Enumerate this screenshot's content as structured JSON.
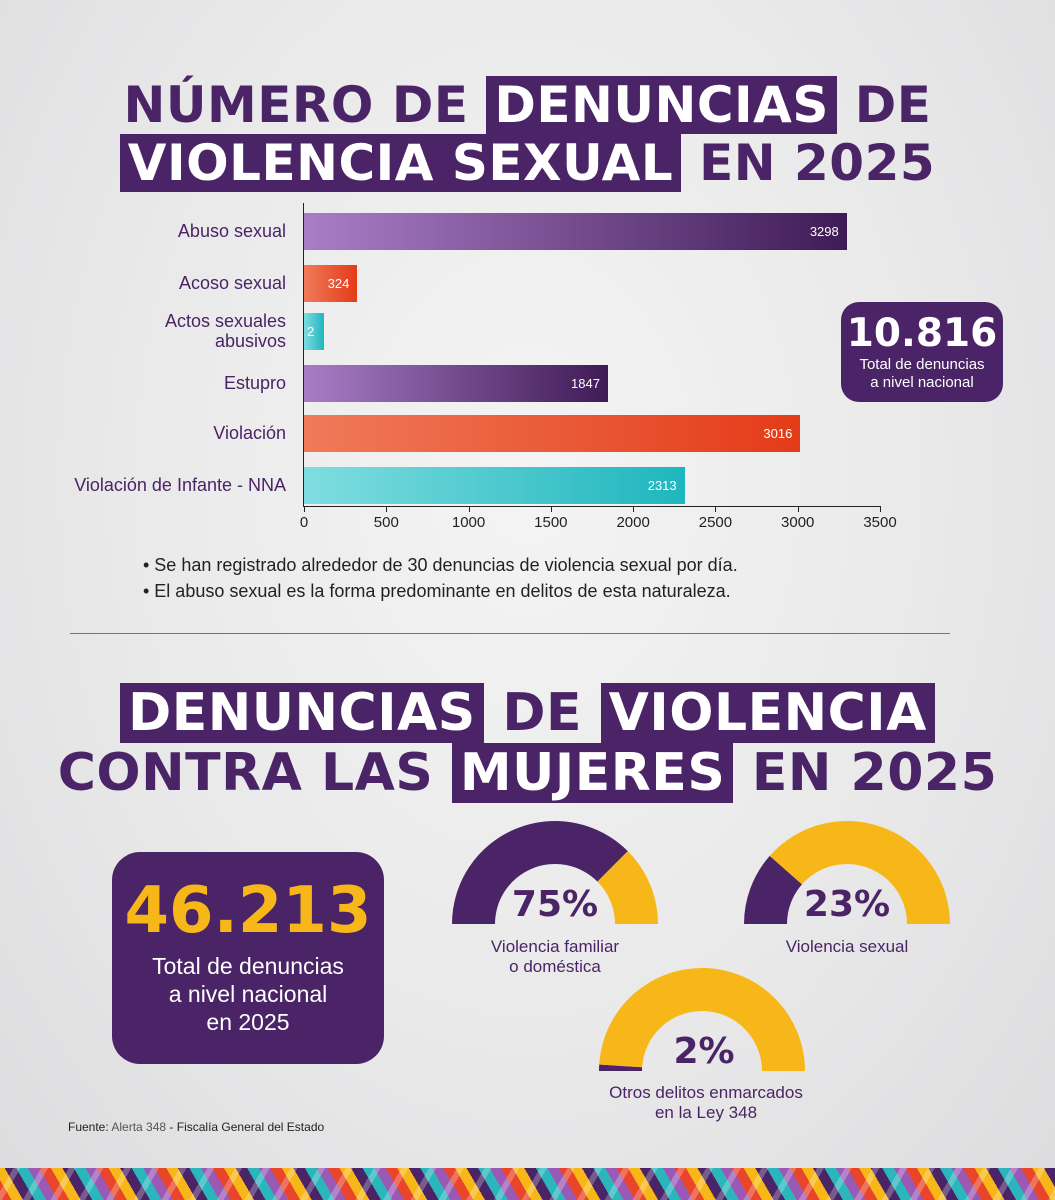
{
  "section1": {
    "title_line1": {
      "a": "NÚMERO DE ",
      "b": "DENUNCIAS",
      "c": " DE"
    },
    "title_line2": {
      "a": "VIOLENCIA SEXUAL",
      "b": " EN 2025"
    },
    "bullets": [
      "• Se han registrado alrededor de 30 denuncias de violencia sexual por día.",
      "• El abuso sexual es la forma predominante en delitos de esta naturaleza."
    ],
    "total": {
      "number": "10.816",
      "caption_line1": "Total de denuncias",
      "caption_line2": "a nivel nacional"
    }
  },
  "chart_data": [
    {
      "type": "bar",
      "orientation": "horizontal",
      "categories": [
        "Abuso sexual",
        "Acoso sexual",
        "Actos sexuales abusivos",
        "Estupro",
        "Violación",
        "Violación de Infante - NNA"
      ],
      "category_lines": [
        [
          "Abuso sexual"
        ],
        [
          "Acoso sexual"
        ],
        [
          "Actos sexuales",
          "abusivos"
        ],
        [
          "Estupro"
        ],
        [
          "Violación"
        ],
        [
          "Violación de Infante - NNA"
        ]
      ],
      "values": [
        3298,
        324,
        2,
        1847,
        3016,
        2313
      ],
      "data_labels": [
        "3298",
        "324",
        "2",
        "1847",
        "3016",
        "2313"
      ],
      "xlim": [
        0,
        3500
      ],
      "xticks": [
        0,
        500,
        1000,
        1500,
        2000,
        2500,
        3000,
        3500
      ],
      "xtick_labels": [
        "0",
        "500",
        "1000",
        "1500",
        "2000",
        "2500",
        "3000",
        "3500"
      ],
      "bar_gradients": [
        [
          "#a97dc6",
          "#3f1b56"
        ],
        [
          "#f07a5a",
          "#e43b18"
        ],
        [
          "#7fdde0",
          "#1eb6bd"
        ],
        [
          "#a97dc6",
          "#3f1b56"
        ],
        [
          "#f07a5a",
          "#e43b18"
        ],
        [
          "#7fdde0",
          "#1eb6bd"
        ]
      ],
      "grid": false
    },
    {
      "type": "gauge",
      "categories": [
        "Violencia familiar o doméstica",
        "Violencia sexual",
        "Otros delitos enmarcados en la Ley 348"
      ],
      "values": [
        75,
        23,
        2
      ],
      "unit": "%",
      "colors": {
        "value": "#4a2466",
        "rest": "#f7b718"
      }
    }
  ],
  "section2": {
    "title_line1": {
      "a": "DENUNCIAS",
      "b": " DE ",
      "c": "VIOLENCIA"
    },
    "title_line2": {
      "a": "CONTRA LAS ",
      "b": "MUJERES",
      "c": " EN 2025"
    },
    "big_total": {
      "number": "46.213",
      "caption_line1": "Total de denuncias",
      "caption_line2": "a nivel nacional",
      "caption_line3": "en 2025"
    },
    "gauges": [
      {
        "pct": "75%",
        "label_line1": "Violencia familiar",
        "label_line2": "o doméstica"
      },
      {
        "pct": "23%",
        "label_line1": "Violencia sexual",
        "label_line2": ""
      },
      {
        "pct": "2%",
        "label_line1": "Otros delitos enmarcados",
        "label_line2": "en la Ley 348"
      }
    ]
  },
  "source": {
    "prefix": "Fuente:",
    "name": "Alerta 348",
    "sep": " - ",
    "org": "Fiscalía General del Estado"
  },
  "colors": {
    "purple": "#4a2466",
    "yellow": "#f7b718",
    "orange": "#e8452a",
    "teal": "#2bb6bb"
  }
}
